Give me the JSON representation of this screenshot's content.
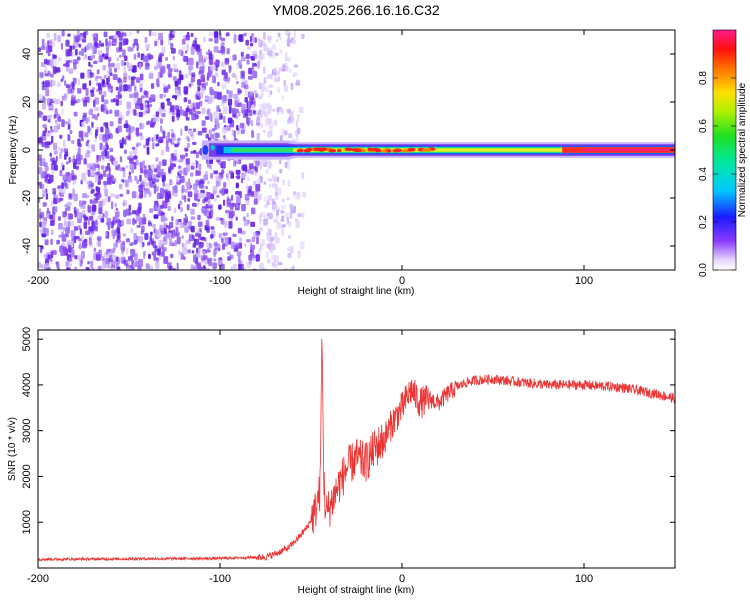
{
  "title": "YM08.2025.266.16.16.C32",
  "colors": {
    "line": "#ee3333",
    "axis": "#000000",
    "noise": "#6a28e8"
  },
  "chart_data": [
    {
      "type": "heatmap",
      "name": "spectrogram",
      "xlabel": "Height of straight line (km)",
      "ylabel": "Frequency (Hz)",
      "xlim": [
        -200,
        150
      ],
      "ylim": [
        -50,
        50
      ],
      "xticks": [
        -200,
        -100,
        0,
        100
      ],
      "yticks": [
        -40,
        -20,
        0,
        20,
        40
      ],
      "colorbar": {
        "label": "Normalized spectral amplitude",
        "range": [
          0,
          1
        ],
        "ticks": [
          0.0,
          0.2,
          0.4,
          0.6,
          0.8
        ],
        "tick_labels": [
          "0.0",
          "0.2",
          "0.4",
          "0.6",
          "0.8"
        ]
      },
      "features": {
        "noise_region_x": [
          -200,
          -72
        ],
        "noise_fade_x": [
          -72,
          -52
        ],
        "signal_start_x": -110,
        "signal_center_hz": 0,
        "signal_strong_from_x": -30
      }
    },
    {
      "type": "line",
      "name": "snr",
      "xlabel": "Height of straight line (km)",
      "ylabel": "SNR (10 * v/v)",
      "xlim": [
        -200,
        150
      ],
      "ylim": [
        0,
        5200
      ],
      "xticks": [
        -200,
        -100,
        0,
        100
      ],
      "yticks": [
        1000,
        2000,
        3000,
        4000,
        5000
      ],
      "series": [
        {
          "name": "SNR",
          "x": [
            -200,
            -150,
            -100,
            -75,
            -70,
            -62,
            -56,
            -52,
            -48,
            -45,
            -44,
            -43,
            -42,
            -40,
            -35,
            -30,
            -25,
            -20,
            -15,
            -10,
            -5,
            0,
            5,
            10,
            15,
            20,
            25,
            30,
            35,
            40,
            50,
            60,
            80,
            100,
            120,
            140,
            150
          ],
          "values": [
            190,
            200,
            210,
            240,
            300,
            450,
            700,
            900,
            1200,
            1700,
            5200,
            2000,
            1200,
            1300,
            1800,
            2200,
            2400,
            2300,
            2600,
            2800,
            3200,
            3500,
            3900,
            3600,
            3700,
            3600,
            3800,
            3950,
            4050,
            4100,
            4130,
            4080,
            4000,
            4000,
            3950,
            3800,
            3700
          ]
        }
      ]
    }
  ]
}
